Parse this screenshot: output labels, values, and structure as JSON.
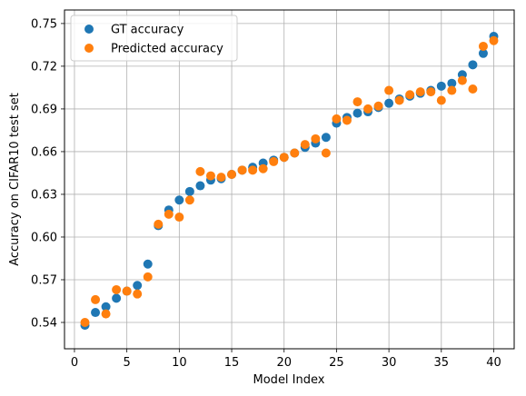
{
  "chart_data": {
    "type": "scatter",
    "title": "",
    "xlabel": "Model Index",
    "ylabel": "Accuracy on CIFAR10 test set",
    "xlim": [
      -0.95,
      41.95
    ],
    "ylim": [
      0.5215,
      0.7595
    ],
    "x_ticks": [
      0,
      5,
      10,
      15,
      20,
      25,
      30,
      35,
      40
    ],
    "y_ticks": [
      0.54,
      0.57,
      0.6,
      0.63,
      0.66,
      0.69,
      0.72,
      0.75
    ],
    "y_tick_labels": [
      "0.54",
      "0.57",
      "0.60",
      "0.63",
      "0.66",
      "0.69",
      "0.72",
      "0.75"
    ],
    "grid": true,
    "legend_position": "upper-left",
    "x": [
      1,
      2,
      3,
      4,
      5,
      6,
      7,
      8,
      9,
      10,
      11,
      12,
      13,
      14,
      15,
      16,
      17,
      18,
      19,
      20,
      21,
      22,
      23,
      24,
      25,
      26,
      27,
      28,
      29,
      30,
      31,
      32,
      33,
      34,
      35,
      36,
      37,
      38,
      39,
      40
    ],
    "series": [
      {
        "name": "GT accuracy",
        "color": "#1f77b4",
        "values": [
          0.538,
          0.547,
          0.551,
          0.557,
          0.562,
          0.566,
          0.581,
          0.608,
          0.619,
          0.626,
          0.632,
          0.636,
          0.64,
          0.641,
          0.644,
          0.647,
          0.649,
          0.652,
          0.654,
          0.656,
          0.659,
          0.663,
          0.666,
          0.67,
          0.68,
          0.684,
          0.687,
          0.688,
          0.691,
          0.694,
          0.697,
          0.699,
          0.701,
          0.703,
          0.706,
          0.708,
          0.714,
          0.721,
          0.729,
          0.741
        ]
      },
      {
        "name": "Predicted accuracy",
        "color": "#ff7f0e",
        "values": [
          0.54,
          0.556,
          0.546,
          0.563,
          0.562,
          0.56,
          0.572,
          0.609,
          0.616,
          0.614,
          0.626,
          0.646,
          0.643,
          0.642,
          0.644,
          0.647,
          0.647,
          0.648,
          0.653,
          0.656,
          0.659,
          0.665,
          0.669,
          0.659,
          0.683,
          0.682,
          0.695,
          0.69,
          0.692,
          0.703,
          0.696,
          0.7,
          0.702,
          0.702,
          0.696,
          0.703,
          0.71,
          0.704,
          0.734,
          0.738
        ]
      }
    ]
  }
}
